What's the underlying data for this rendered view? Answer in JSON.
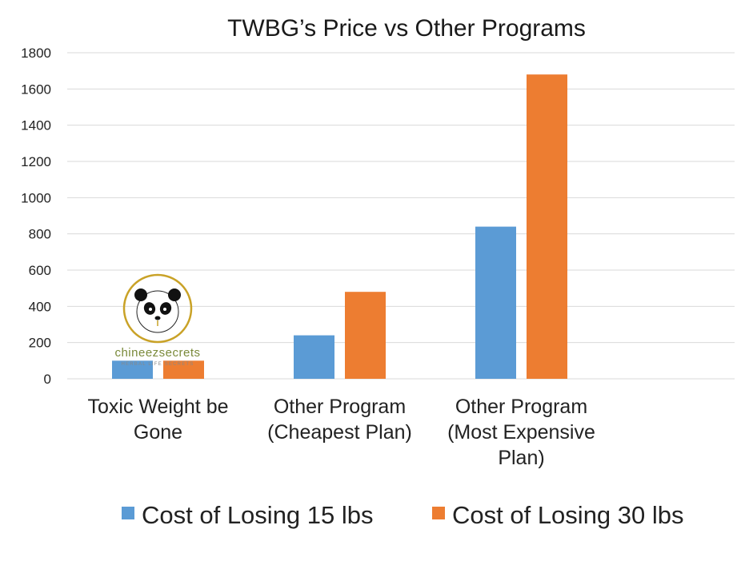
{
  "chart_data": {
    "type": "bar",
    "title": "TWBG’s Price vs Other Programs",
    "categories": [
      [
        "Toxic Weight be",
        "Gone"
      ],
      [
        "Other Program",
        "(Cheapest Plan)"
      ],
      [
        "Other Program",
        "(Most Expensive",
        "Plan)"
      ]
    ],
    "series": [
      {
        "name": "Cost of Losing 15 lbs",
        "color": "#5b9bd5",
        "values": [
          100,
          240,
          840
        ]
      },
      {
        "name": "Cost of Losing 30 lbs",
        "color": "#ed7d31",
        "values": [
          100,
          480,
          1680
        ]
      }
    ],
    "ylim": [
      0,
      1800
    ],
    "yticks": [
      "0",
      "200",
      "400",
      "600",
      "800",
      "1000",
      "1200",
      "1400",
      "1600",
      "1800"
    ],
    "grid": true,
    "legend": "bottom"
  },
  "logo": {
    "brand": "chineezsecrets",
    "tagline": "HERBAL LIFE SECRETS",
    "icon": "panda-icon",
    "ring_color": "#c9a227"
  }
}
